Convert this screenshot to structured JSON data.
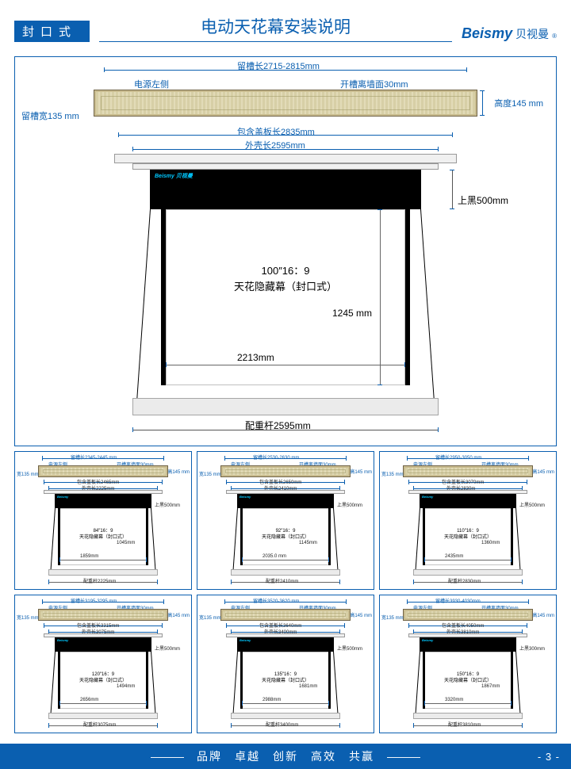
{
  "colors": {
    "primary": "#0a5fb0",
    "bar_fill": "#d7cfa6",
    "black": "#000000",
    "white": "#ffffff"
  },
  "header": {
    "badge": "封口式",
    "title": "电动天花幕安装说明",
    "brand_en": "Beismy",
    "brand_cn": "贝视曼",
    "reg": "®"
  },
  "main": {
    "slot_len": "留槽长2715-2815mm",
    "power_side": "电源左侧",
    "wall_gap": "开槽离墙面30mm",
    "height": "高度145 mm",
    "slot_width": "留槽宽135 mm",
    "cover_len": "包含盖板长2835mm",
    "shell_len": "外壳长2595mm",
    "top_black": "上黑500mm",
    "aspect": "100″16：9",
    "desc": "天花隐藏幕（封口式）",
    "v_height": "1245 mm",
    "width": "2213mm",
    "weight_bar": "配重杆2595mm",
    "brandmark": "Beismy 贝视曼"
  },
  "thumbs": [
    {
      "slot_len": "留槽长2345-2445 mm",
      "power_side": "电源左侧",
      "wall_gap": "开槽离墙面30mm",
      "slot_w": "宽135 mm",
      "h": "高145 mm",
      "cover": "包含盖板长2465mm",
      "shell": "外壳长2225mm",
      "top_black": "上黑500mm",
      "aspect": "84″16：9",
      "desc": "天花隐藏幕（封口式）",
      "height": "1045mm",
      "width": "1859mm",
      "weight": "配重杆2225mm"
    },
    {
      "slot_len": "留槽长2530-2630 mm",
      "power_side": "电源左侧",
      "wall_gap": "开槽离墙面30mm",
      "slot_w": "宽135 mm",
      "h": "高145 mm",
      "cover": "包含盖板长2650mm",
      "shell": "外壳长2410mm",
      "top_black": "上黑500mm",
      "aspect": "92″16：9",
      "desc": "天花隐藏幕（封口式）",
      "height": "1145mm",
      "width": "2035.0 mm",
      "weight": "配重杆2410mm"
    },
    {
      "slot_len": "留槽长2950-3050 mm",
      "power_side": "电源左侧",
      "wall_gap": "开槽离墙面30mm",
      "slot_w": "宽135 mm",
      "h": "高145 mm",
      "cover": "包含盖板长3070mm",
      "shell": "外壳长2830m",
      "top_black": "上黑500mm",
      "aspect": "110″16：9",
      "desc": "天花隐藏幕（封口式）",
      "height": "1360mm",
      "width": "2435mm",
      "weight": "配重杆2830mm"
    },
    {
      "slot_len": "留槽长3195-3295 mm",
      "power_side": "电源左侧",
      "wall_gap": "开槽离墙面30mm",
      "slot_w": "宽135 mm",
      "h": "高145 mm",
      "cover": "包含盖板长3315mm",
      "shell": "外壳长3075mm",
      "top_black": "上黑500mm",
      "aspect": "120″16：9",
      "desc": "天花隐藏幕（封口式）",
      "height": "1494mm",
      "width": "2656mm",
      "weight": "配重杆3075mm"
    },
    {
      "slot_len": "留槽长3520-3620 mm",
      "power_side": "电源左侧",
      "wall_gap": "开槽离墙面30mm",
      "slot_w": "宽135 mm",
      "h": "高145 mm",
      "cover": "包含盖板长3640mm",
      "shell": "外壳长3400mm",
      "top_black": "上黑500mm",
      "aspect": "135″16：9",
      "desc": "天花隐藏幕（封口式）",
      "height": "1681mm",
      "width": "2988mm",
      "weight": "配重杆3400mm"
    },
    {
      "slot_len": "留槽长3930-4030mm",
      "power_side": "电源左侧",
      "wall_gap": "开槽离墙面30mm",
      "slot_w": "宽135 mm",
      "h": "高145 mm",
      "cover": "包含盖板长4050mm",
      "shell": "外壳长3810mm",
      "top_black": "上黑300mm",
      "aspect": "150″16：9",
      "desc": "天花隐藏幕（封口式）",
      "height": "1867mm",
      "width": "3320mm",
      "weight": "配重杆3810mm"
    }
  ],
  "footer": {
    "slogan": [
      "品牌",
      "卓越",
      "创新",
      "高效",
      "共赢"
    ],
    "page": "- 3 -"
  }
}
